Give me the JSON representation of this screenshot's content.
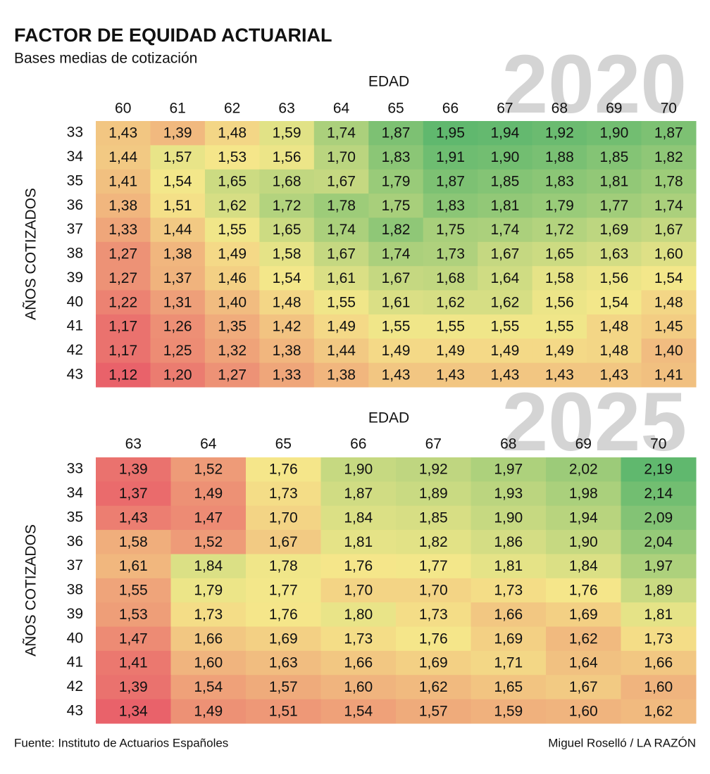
{
  "header": {
    "title": "FACTOR DE EQUIDAD ACTUARIAL",
    "subtitle": "Bases medias de cotización"
  },
  "footer": {
    "source": "Fuente: Instituto de Actuarios Españoles",
    "credit": "Miguel Roselló / LA RAZÓN"
  },
  "chart_data": [
    {
      "type": "heatmap",
      "watermark": "2020",
      "x_label": "EDAD",
      "y_label": "AÑOS COTIZADOS",
      "x": [
        60,
        61,
        62,
        63,
        64,
        65,
        66,
        67,
        68,
        69,
        70
      ],
      "y": [
        33,
        34,
        35,
        36,
        37,
        38,
        39,
        40,
        41,
        42,
        43
      ],
      "values": [
        [
          1.43,
          1.39,
          1.48,
          1.59,
          1.74,
          1.87,
          1.95,
          1.94,
          1.92,
          1.9,
          1.87
        ],
        [
          1.44,
          1.57,
          1.53,
          1.56,
          1.7,
          1.83,
          1.91,
          1.9,
          1.88,
          1.85,
          1.82
        ],
        [
          1.41,
          1.54,
          1.65,
          1.68,
          1.67,
          1.79,
          1.87,
          1.85,
          1.83,
          1.81,
          1.78
        ],
        [
          1.38,
          1.51,
          1.62,
          1.72,
          1.78,
          1.75,
          1.83,
          1.81,
          1.79,
          1.77,
          1.74
        ],
        [
          1.33,
          1.44,
          1.55,
          1.65,
          1.74,
          1.82,
          1.75,
          1.74,
          1.72,
          1.69,
          1.67
        ],
        [
          1.27,
          1.38,
          1.49,
          1.58,
          1.67,
          1.74,
          1.73,
          1.67,
          1.65,
          1.63,
          1.6
        ],
        [
          1.27,
          1.37,
          1.46,
          1.54,
          1.61,
          1.67,
          1.68,
          1.64,
          1.58,
          1.56,
          1.54
        ],
        [
          1.22,
          1.31,
          1.4,
          1.48,
          1.55,
          1.61,
          1.62,
          1.62,
          1.56,
          1.54,
          1.48
        ],
        [
          1.17,
          1.26,
          1.35,
          1.42,
          1.49,
          1.55,
          1.55,
          1.55,
          1.55,
          1.48,
          1.45
        ],
        [
          1.17,
          1.25,
          1.32,
          1.38,
          1.44,
          1.49,
          1.49,
          1.49,
          1.49,
          1.48,
          1.4
        ],
        [
          1.12,
          1.2,
          1.27,
          1.33,
          1.38,
          1.43,
          1.43,
          1.43,
          1.43,
          1.43,
          1.41
        ]
      ],
      "value_labels": [
        [
          "1,43",
          "1,39",
          "1,48",
          "1,59",
          "1,74",
          "1,87",
          "1,95",
          "1,94",
          "1,92",
          "1,90",
          "1,87"
        ],
        [
          "1,44",
          "1,57",
          "1,53",
          "1,56",
          "1,70",
          "1,83",
          "1,91",
          "1,90",
          "1,88",
          "1,85",
          "1,82"
        ],
        [
          "1,41",
          "1,54",
          "1,65",
          "1,68",
          "1,67",
          "1,79",
          "1,87",
          "1,85",
          "1,83",
          "1,81",
          "1,78"
        ],
        [
          "1,38",
          "1,51",
          "1,62",
          "1,72",
          "1,78",
          "1,75",
          "1,83",
          "1,81",
          "1,79",
          "1,77",
          "1,74"
        ],
        [
          "1,33",
          "1,44",
          "1,55",
          "1,65",
          "1,74",
          "1,82",
          "1,75",
          "1,74",
          "1,72",
          "1,69",
          "1,67"
        ],
        [
          "1,27",
          "1,38",
          "1,49",
          "1,58",
          "1,67",
          "1,74",
          "1,73",
          "1,67",
          "1,65",
          "1,63",
          "1,60"
        ],
        [
          "1,27",
          "1,37",
          "1,46",
          "1,54",
          "1,61",
          "1,67",
          "1,68",
          "1,64",
          "1,58",
          "1,56",
          "1,54"
        ],
        [
          "1,22",
          "1,31",
          "1,40",
          "1,48",
          "1,55",
          "1,61",
          "1,62",
          "1,62",
          "1,56",
          "1,54",
          "1,48"
        ],
        [
          "1,17",
          "1,26",
          "1,35",
          "1,42",
          "1,49",
          "1,55",
          "1,55",
          "1,55",
          "1,55",
          "1,48",
          "1,45"
        ],
        [
          "1,17",
          "1,25",
          "1,32",
          "1,38",
          "1,44",
          "1,49",
          "1,49",
          "1,49",
          "1,49",
          "1,48",
          "1,40"
        ],
        [
          "1,12",
          "1,20",
          "1,27",
          "1,33",
          "1,38",
          "1,43",
          "1,43",
          "1,43",
          "1,43",
          "1,43",
          "1,41"
        ]
      ]
    },
    {
      "type": "heatmap",
      "watermark": "2025",
      "x_label": "EDAD",
      "y_label": "AÑOS COTIZADOS",
      "x": [
        63,
        64,
        65,
        66,
        67,
        68,
        69,
        70
      ],
      "y": [
        33,
        34,
        35,
        36,
        37,
        38,
        39,
        40,
        41,
        42,
        43
      ],
      "values": [
        [
          1.39,
          1.52,
          1.76,
          1.9,
          1.92,
          1.97,
          2.02,
          2.19
        ],
        [
          1.37,
          1.49,
          1.73,
          1.87,
          1.89,
          1.93,
          1.98,
          2.14
        ],
        [
          1.43,
          1.47,
          1.7,
          1.84,
          1.85,
          1.9,
          1.94,
          2.09
        ],
        [
          1.58,
          1.52,
          1.67,
          1.81,
          1.82,
          1.86,
          1.9,
          2.04
        ],
        [
          1.61,
          1.84,
          1.78,
          1.76,
          1.77,
          1.81,
          1.84,
          1.97
        ],
        [
          1.55,
          1.79,
          1.77,
          1.7,
          1.7,
          1.73,
          1.76,
          1.89
        ],
        [
          1.53,
          1.73,
          1.76,
          1.8,
          1.73,
          1.66,
          1.69,
          1.81
        ],
        [
          1.47,
          1.66,
          1.69,
          1.73,
          1.76,
          1.69,
          1.62,
          1.73
        ],
        [
          1.41,
          1.6,
          1.63,
          1.66,
          1.69,
          1.71,
          1.64,
          1.66
        ],
        [
          1.39,
          1.54,
          1.57,
          1.6,
          1.62,
          1.65,
          1.67,
          1.6
        ],
        [
          1.34,
          1.49,
          1.51,
          1.54,
          1.57,
          1.59,
          1.6,
          1.62
        ]
      ],
      "value_labels": [
        [
          "1,39",
          "1,52",
          "1,76",
          "1,90",
          "1,92",
          "1,97",
          "2,02",
          "2,19"
        ],
        [
          "1,37",
          "1,49",
          "1,73",
          "1,87",
          "1,89",
          "1,93",
          "1,98",
          "2,14"
        ],
        [
          "1,43",
          "1,47",
          "1,70",
          "1,84",
          "1,85",
          "1,90",
          "1,94",
          "2,09"
        ],
        [
          "1,58",
          "1,52",
          "1,67",
          "1,81",
          "1,82",
          "1,86",
          "1,90",
          "2,04"
        ],
        [
          "1,61",
          "1,84",
          "1,78",
          "1,76",
          "1,77",
          "1,81",
          "1,84",
          "1,97"
        ],
        [
          "1,55",
          "1,79",
          "1,77",
          "1,70",
          "1,70",
          "1,73",
          "1,76",
          "1,89"
        ],
        [
          "1,53",
          "1,73",
          "1,76",
          "1,80",
          "1,73",
          "1,66",
          "1,69",
          "1,81"
        ],
        [
          "1,47",
          "1,66",
          "1,69",
          "1,73",
          "1,76",
          "1,69",
          "1,62",
          "1,73"
        ],
        [
          "1,41",
          "1,60",
          "1,63",
          "1,66",
          "1,69",
          "1,71",
          "1,64",
          "1,66"
        ],
        [
          "1,39",
          "1,54",
          "1,57",
          "1,60",
          "1,62",
          "1,65",
          "1,67",
          "1,60"
        ],
        [
          "1,34",
          "1,49",
          "1,51",
          "1,54",
          "1,57",
          "1,59",
          "1,60",
          "1,62"
        ]
      ]
    }
  ]
}
